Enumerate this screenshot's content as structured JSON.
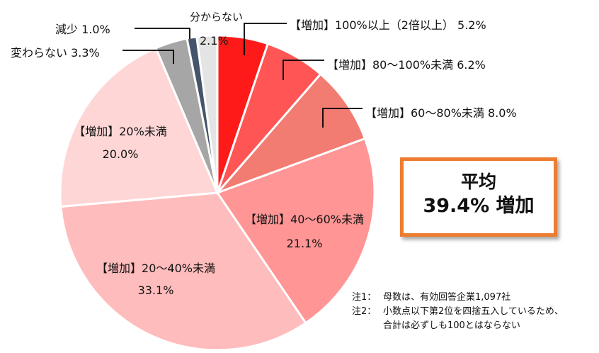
{
  "chart_data": {
    "type": "pie",
    "title": "",
    "start_angle_deg": 0,
    "direction": "clockwise",
    "slices": [
      {
        "label": "【増加】100%以上（2倍以上）",
        "value": 5.2,
        "color": "#FF1A1A"
      },
      {
        "label": "【増加】80～100%未満",
        "value": 6.2,
        "color": "#FF5555"
      },
      {
        "label": "【増加】60～80%未満",
        "value": 8.0,
        "color": "#F27B72"
      },
      {
        "label": "【増加】40～60%未満",
        "value": 21.1,
        "color": "#FF9595"
      },
      {
        "label": "【増加】20～40%未満",
        "value": 33.1,
        "color": "#FFBCBC"
      },
      {
        "label": "【増加】20%未満",
        "value": 20.0,
        "color": "#FFD6D6"
      },
      {
        "label": "変わらない",
        "value": 3.3,
        "color": "#A6A6A6"
      },
      {
        "label": "減少",
        "value": 1.0,
        "color": "#44546A"
      },
      {
        "label": "分からない",
        "value": 2.1,
        "color": "#E4E4E4"
      }
    ]
  },
  "labels": {
    "l100": "【増加】100%以上（2倍以上） 5.2%",
    "l80": "【増加】80～100%未満 6.2%",
    "l60": "【増加】60～80%未満 8.0%",
    "l40_name": "【増加】40～60%未満",
    "l40_val": "21.1%",
    "l20_40_name": "【増加】20～40%未満",
    "l20_40_val": "33.1%",
    "l20_name": "【増加】20%未満",
    "l20_val": "20.0%",
    "same": "変わらない 3.3%",
    "decrease": "減少 1.0%",
    "unknown_name": "分からない",
    "unknown_val": "2.1%"
  },
  "average": {
    "line1": "平均",
    "line2": "39.4% 増加",
    "border_color": "#ED7D31"
  },
  "notes": [
    {
      "key": "注1：",
      "text": "母数は、有効回答企業1,097社"
    },
    {
      "key": "注2：",
      "text": "小数点以下第2位を四捨五入しているため、"
    },
    {
      "key": "",
      "text": "合計は必ずしも100とはならない"
    }
  ]
}
